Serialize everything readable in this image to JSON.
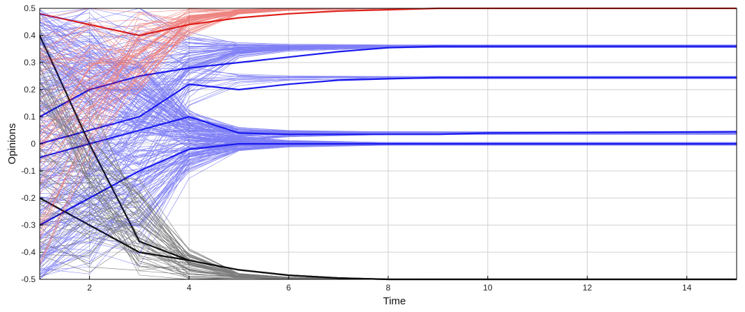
{
  "chart_data": {
    "type": "line",
    "xlabel": "Time",
    "ylabel": "Opinions",
    "xlim": [
      1,
      15
    ],
    "ylim": [
      -0.5,
      0.5
    ],
    "x_ticks": [
      2,
      4,
      6,
      8,
      10,
      12,
      14
    ],
    "y_ticks": [
      0.5,
      0.4,
      0.3,
      0.2,
      0.1,
      0,
      -0.1,
      -0.2,
      -0.3,
      -0.4,
      -0.5
    ],
    "grid": true,
    "legend": "none",
    "colors": {
      "red": "#e0201a",
      "blue": "#1a1aee",
      "black": "#111111",
      "axis": "#000000",
      "grid": "#cfcfcf"
    },
    "series": [
      {
        "color": "red",
        "x": [
          1,
          2,
          3,
          4,
          5,
          6,
          7,
          8,
          9,
          10,
          15
        ],
        "y": [
          0.48,
          0.44,
          0.4,
          0.44,
          0.465,
          0.48,
          0.49,
          0.495,
          0.5,
          0.5,
          0.5
        ]
      },
      {
        "color": "blue",
        "x": [
          1,
          2,
          3,
          4,
          5,
          6,
          7,
          8,
          9,
          10,
          15
        ],
        "y": [
          0.1,
          0.2,
          0.25,
          0.28,
          0.3,
          0.32,
          0.34,
          0.355,
          0.36,
          0.36,
          0.36
        ]
      },
      {
        "color": "blue",
        "x": [
          1,
          2,
          3,
          4,
          5,
          6,
          7,
          8,
          9,
          10,
          15
        ],
        "y": [
          0.0,
          0.05,
          0.1,
          0.22,
          0.2,
          0.22,
          0.235,
          0.24,
          0.245,
          0.245,
          0.245
        ]
      },
      {
        "color": "blue",
        "x": [
          1,
          2,
          3,
          4,
          5,
          6,
          7,
          8,
          9,
          10,
          15
        ],
        "y": [
          -0.05,
          0.0,
          0.05,
          0.1,
          0.04,
          0.035,
          0.035,
          0.035,
          0.035,
          0.04,
          0.045
        ]
      },
      {
        "color": "blue",
        "x": [
          1,
          2,
          3,
          4,
          5,
          6,
          7,
          8,
          9,
          10,
          15
        ],
        "y": [
          -0.3,
          -0.2,
          -0.1,
          -0.02,
          0.0,
          0.0,
          0.0,
          0.0,
          0.0,
          0.0,
          0.0
        ]
      },
      {
        "color": "black",
        "x": [
          1,
          2,
          3,
          4,
          5,
          6,
          7,
          8,
          9,
          10,
          15
        ],
        "y": [
          0.4,
          0.0,
          -0.36,
          -0.43,
          -0.465,
          -0.485,
          -0.495,
          -0.5,
          -0.5,
          -0.5,
          -0.5
        ]
      },
      {
        "color": "black",
        "x": [
          1,
          2,
          3,
          4,
          5,
          6,
          7,
          8,
          9,
          10,
          15
        ],
        "y": [
          -0.2,
          -0.3,
          -0.4,
          -0.43,
          -0.465,
          -0.485,
          -0.495,
          -0.5,
          -0.5,
          -0.5,
          -0.5
        ]
      }
    ]
  }
}
